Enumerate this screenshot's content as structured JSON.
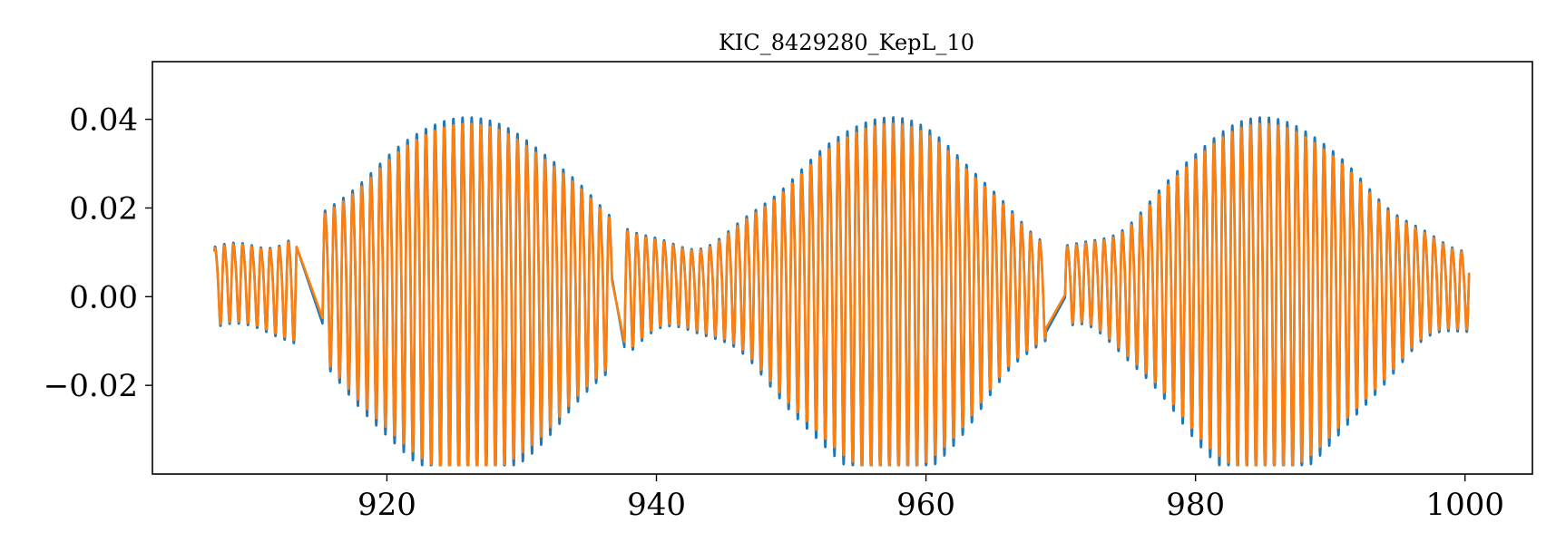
{
  "chart_data": {
    "type": "line",
    "title": "KIC_8429280_KepL_10",
    "xlabel": "",
    "ylabel": "",
    "xlim": [
      902.6,
      1005.0
    ],
    "ylim": [
      -0.04,
      0.053
    ],
    "grid": false,
    "legend": "none",
    "x_ticks": [
      920,
      940,
      960,
      980,
      1000
    ],
    "x_tick_labels": [
      "920",
      "940",
      "960",
      "980",
      "1000"
    ],
    "y_ticks": [
      -0.02,
      0.0,
      0.02,
      0.04
    ],
    "y_tick_labels": [
      "−0.02",
      "0.00",
      "0.02",
      "0.04"
    ],
    "x_range": [
      907.2,
      1000.3
    ],
    "oscillation_period": 0.68,
    "beat_envelope_peaks_x": [
      926.0,
      957.5,
      985.0
    ],
    "beat_envelope_nodes_x": [
      910.0,
      942.0,
      971.0,
      1000.0
    ],
    "gaps": [
      [
        913.3,
        915.2
      ],
      [
        936.7,
        937.6
      ],
      [
        968.9,
        970.3
      ]
    ],
    "series": [
      {
        "color": "#1f77b4",
        "amplitude": 0.04,
        "offset": 0.0
      },
      {
        "color": "#ff7f0e",
        "amplitude": 0.038,
        "offset": 0.0
      }
    ]
  }
}
